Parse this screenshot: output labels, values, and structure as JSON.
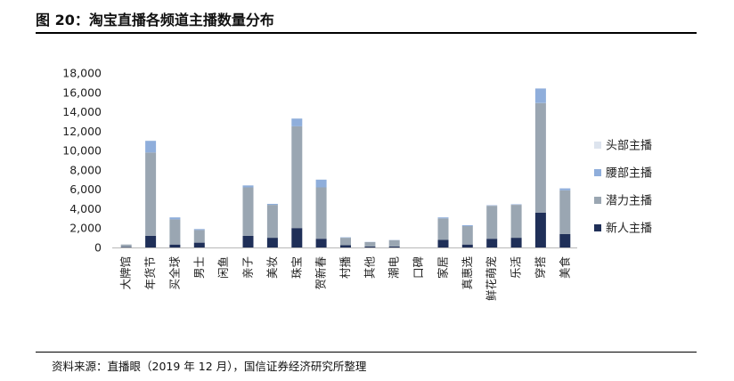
{
  "figure": {
    "title": "图 20：淘宝直播各频道主播数量分布",
    "source": "资料来源：直播眼（2019 年 12 月），国信证券经济研究所整理"
  },
  "chart_data": {
    "type": "bar",
    "stacked": true,
    "categories": [
      "大牌馆",
      "年货节",
      "买全球",
      "男士",
      "闲鱼",
      "亲子",
      "美妆",
      "珠宝",
      "贺新春",
      "村播",
      "其他",
      "潮电",
      "口碑",
      "家居",
      "真惠选",
      "鲜花萌宠",
      "乐活",
      "穿搭",
      "美食"
    ],
    "series": [
      {
        "name": "新人主播",
        "color": "#1f2f58",
        "values": [
          50,
          1200,
          300,
          500,
          0,
          1200,
          1000,
          2000,
          900,
          250,
          100,
          100,
          0,
          800,
          300,
          900,
          1000,
          3600,
          1400
        ]
      },
      {
        "name": "潜力主播",
        "color": "#9aa6b2",
        "values": [
          250,
          8600,
          2600,
          1300,
          0,
          5000,
          3400,
          10500,
          5300,
          750,
          450,
          650,
          0,
          2200,
          1900,
          3400,
          3400,
          11300,
          4500
        ]
      },
      {
        "name": "腰部主播",
        "color": "#8faedb",
        "values": [
          0,
          1200,
          200,
          100,
          0,
          200,
          100,
          800,
          800,
          50,
          20,
          20,
          0,
          100,
          100,
          50,
          50,
          1500,
          200
        ]
      },
      {
        "name": "头部主播",
        "color": "#dde4ee",
        "values": [
          0,
          0,
          0,
          0,
          0,
          0,
          0,
          0,
          0,
          0,
          0,
          0,
          0,
          0,
          0,
          0,
          0,
          0,
          0
        ]
      }
    ],
    "ylim": [
      0,
      18000
    ],
    "yticks": [
      "0",
      "2,000",
      "4,000",
      "6,000",
      "8,000",
      "10,000",
      "12,000",
      "14,000",
      "16,000",
      "18,000"
    ],
    "ytick_values": [
      0,
      2000,
      4000,
      6000,
      8000,
      10000,
      12000,
      14000,
      16000,
      18000
    ],
    "legend": {
      "position": "right",
      "order": [
        "头部主播",
        "腰部主播",
        "潜力主播",
        "新人主播"
      ]
    },
    "grid": false
  }
}
